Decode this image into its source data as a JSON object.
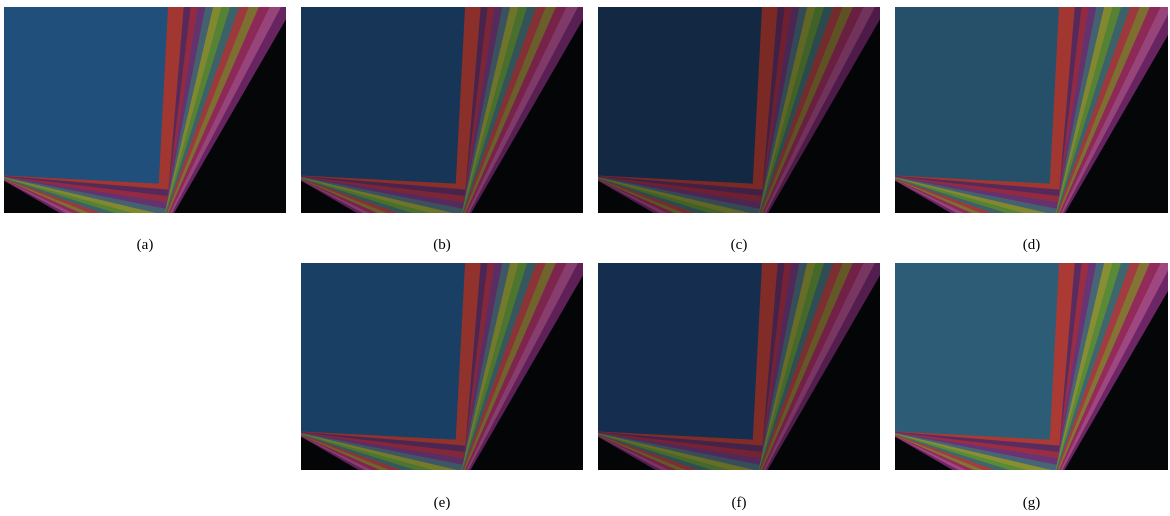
{
  "figure": {
    "captions": [
      "(a)",
      "(b)",
      "(c)",
      "(d)",
      "(e)",
      "(f)",
      "(g)"
    ]
  }
}
